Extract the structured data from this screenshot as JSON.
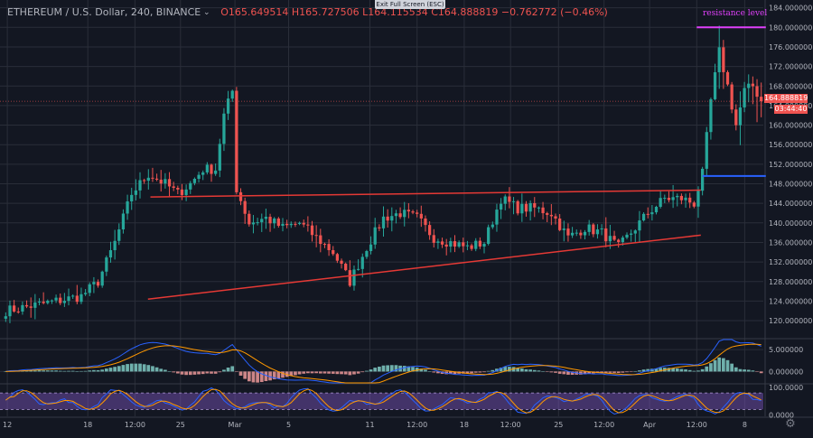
{
  "header": {
    "symbol": "ETHEREUM / U.S. Dollar, 240, BINANCE",
    "ohlc": "O165.649514  H165.727506  L164.115534  C164.888819  −0.762772 (−0.46%)"
  },
  "tooltip": "Exit Full Screen (ESC)",
  "annotations": {
    "resistance_label": "resistance level",
    "blue_note": "",
    "resistance_color": "#e040fb",
    "blue_color": "#2962ff",
    "trendline_color": "#e53935"
  },
  "price_badge": "164.888819",
  "timer_badge": "03:44:40",
  "icons": {
    "settings": "gear-icon",
    "expand": "chevron-down-icon"
  },
  "colors": {
    "background": "#131722",
    "grid": "#2a2e39",
    "bull": "#26a69a",
    "bear": "#ef5350",
    "macd": "#2962ff",
    "signal": "#ff9800",
    "stoch_k": "#2962ff",
    "stoch_d": "#ff9800",
    "stoch_band": "#7e57c2"
  },
  "chart_data": [
    {
      "type": "candlestick",
      "title": "ETHEREUM / U.S. Dollar, 240, BINANCE",
      "x": [
        "12",
        "18",
        "12:00",
        "25",
        "Mar",
        "5",
        "11",
        "12:00",
        "18",
        "12:00",
        "25",
        "12:00",
        "Apr",
        "12:00",
        "8"
      ],
      "y_ticks": [
        "184.000000",
        "180.000000",
        "176.000000",
        "172.000000",
        "168.000000",
        "164.000000",
        "160.000000",
        "156.000000",
        "152.000000",
        "148.000000",
        "144.000000",
        "140.000000",
        "136.000000",
        "132.000000",
        "128.000000",
        "124.000000",
        "120.000000"
      ],
      "ylim": [
        116.5,
        185.6
      ],
      "last_price": 164.888819,
      "anchors": [
        [
          0,
          122
        ],
        [
          6,
          123
        ],
        [
          12,
          124
        ],
        [
          18,
          125
        ],
        [
          22,
          128
        ],
        [
          26,
          136
        ],
        [
          30,
          146
        ],
        [
          34,
          150
        ],
        [
          38,
          148
        ],
        [
          41,
          146
        ],
        [
          44,
          148
        ],
        [
          47,
          151
        ],
        [
          50,
          151
        ],
        [
          52,
          162
        ],
        [
          54,
          167
        ],
        [
          55,
          147
        ],
        [
          58,
          140
        ],
        [
          62,
          141
        ],
        [
          66,
          139
        ],
        [
          70,
          140
        ],
        [
          74,
          137
        ],
        [
          78,
          134
        ],
        [
          82,
          128
        ],
        [
          86,
          135
        ],
        [
          90,
          141
        ],
        [
          94,
          142
        ],
        [
          98,
          141
        ],
        [
          102,
          137
        ],
        [
          106,
          136
        ],
        [
          110,
          135
        ],
        [
          114,
          136
        ],
        [
          118,
          145
        ],
        [
          122,
          143
        ],
        [
          126,
          143
        ],
        [
          130,
          142
        ],
        [
          134,
          137
        ],
        [
          138,
          139
        ],
        [
          142,
          138
        ],
        [
          146,
          135
        ],
        [
          149,
          138
        ],
        [
          153,
          142
        ],
        [
          157,
          145
        ],
        [
          161,
          145
        ],
        [
          164,
          144
        ],
        [
          166,
          150
        ],
        [
          168,
          165
        ],
        [
          170,
          175
        ],
        [
          172,
          168
        ],
        [
          174,
          160
        ],
        [
          176,
          167
        ],
        [
          178,
          168
        ],
        [
          180,
          165
        ]
      ],
      "annotations": {
        "resistance_level": 180.0,
        "blue_line": 149.6,
        "upper_trendline": [
          [
            0.185,
            145.3
          ],
          [
            0.862,
            146.7
          ]
        ],
        "lower_trendline": [
          [
            0.182,
            124.4
          ],
          [
            0.862,
            137.5
          ]
        ]
      }
    },
    {
      "type": "macd",
      "y_ticks": [
        "5.000000",
        "0.000000"
      ],
      "ylim": [
        -2.6,
        7.3
      ]
    },
    {
      "type": "stochastic_rsi",
      "y_ticks": [
        "100.0000",
        "0.0000"
      ],
      "ylim": [
        -5,
        110
      ],
      "bands": [
        80,
        20
      ]
    }
  ]
}
